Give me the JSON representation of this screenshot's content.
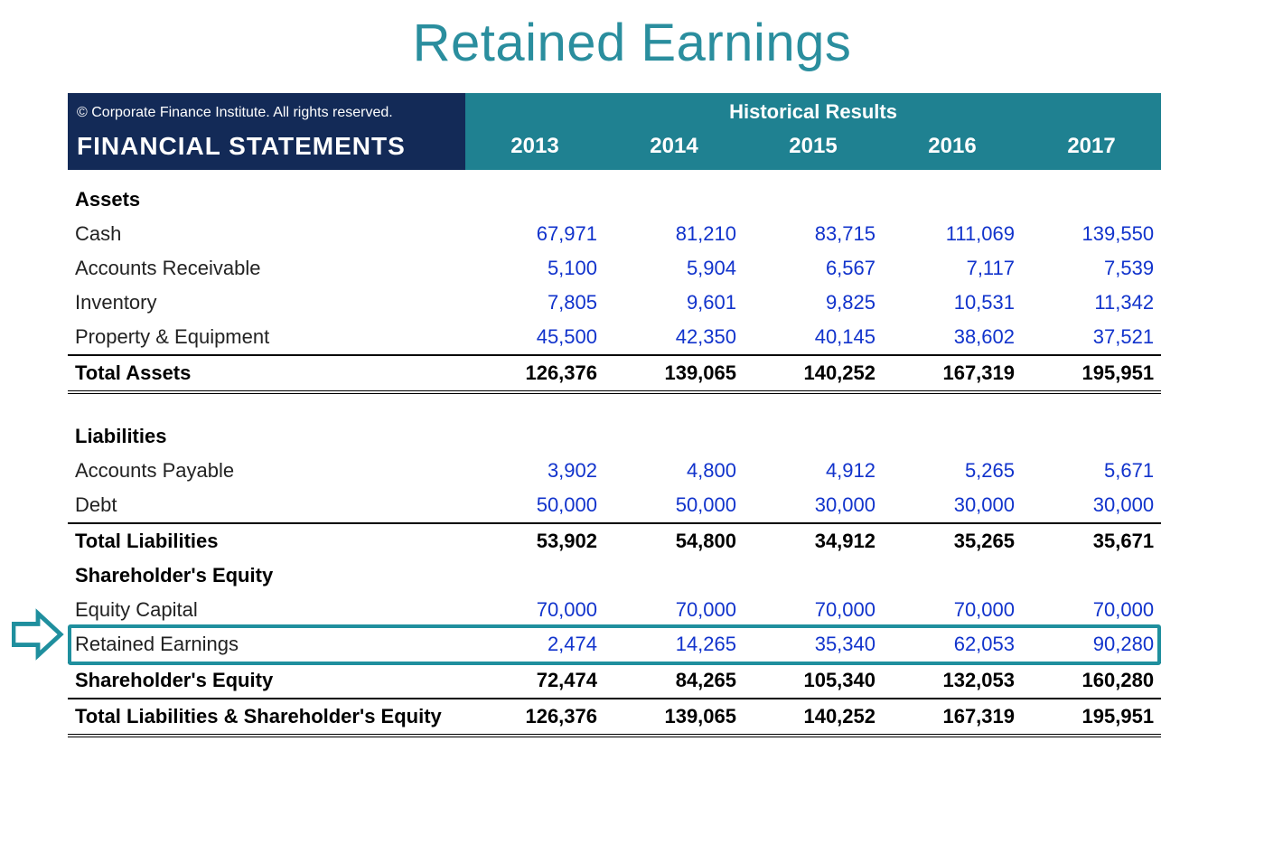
{
  "title": "Retained Earnings",
  "title_color": "#2a8e9e",
  "header": {
    "left_bg": "#132a57",
    "right_bg": "#1f8191",
    "copyright": "© Corporate Finance Institute. All rights reserved.",
    "section_label": "FINANCIAL STATEMENTS",
    "historical_label": "Historical Results",
    "years": [
      "2013",
      "2014",
      "2015",
      "2016",
      "2017"
    ]
  },
  "value_color": "#1133cc",
  "label_color": "#222222",
  "highlight_color": "#1f8f9e",
  "sections": [
    {
      "heading": "Assets",
      "rows": [
        {
          "label": "Cash",
          "values": [
            "67,971",
            "81,210",
            "83,715",
            "111,069",
            "139,550"
          ]
        },
        {
          "label": "Accounts Receivable",
          "values": [
            "5,100",
            "5,904",
            "6,567",
            "7,117",
            "7,539"
          ]
        },
        {
          "label": "Inventory",
          "values": [
            "7,805",
            "9,601",
            "9,825",
            "10,531",
            "11,342"
          ]
        },
        {
          "label": "Property & Equipment",
          "values": [
            "45,500",
            "42,350",
            "40,145",
            "38,602",
            "37,521"
          ]
        }
      ],
      "total": {
        "label": "Total Assets",
        "values": [
          "126,376",
          "139,065",
          "140,252",
          "167,319",
          "195,951"
        ],
        "double_rule": true
      }
    },
    {
      "heading": "Liabilities",
      "rows": [
        {
          "label": "Accounts Payable",
          "values": [
            "3,902",
            "4,800",
            "4,912",
            "5,265",
            "5,671"
          ]
        },
        {
          "label": "Debt",
          "values": [
            "50,000",
            "50,000",
            "30,000",
            "30,000",
            "30,000"
          ]
        }
      ],
      "total": {
        "label": "Total Liabilities",
        "values": [
          "53,902",
          "54,800",
          "34,912",
          "35,265",
          "35,671"
        ],
        "double_rule": false
      }
    },
    {
      "heading": "Shareholder's Equity",
      "rows": [
        {
          "label": "Equity Capital",
          "values": [
            "70,000",
            "70,000",
            "70,000",
            "70,000",
            "70,000"
          ]
        },
        {
          "label": "Retained Earnings",
          "values": [
            "2,474",
            "14,265",
            "35,340",
            "62,053",
            "90,280"
          ],
          "highlight": true
        }
      ],
      "total": {
        "label": "Shareholder's Equity",
        "values": [
          "72,474",
          "84,265",
          "105,340",
          "132,053",
          "160,280"
        ],
        "double_rule": false
      }
    }
  ],
  "grand_total": {
    "label": "Total Liabilities & Shareholder's Equity",
    "values": [
      "126,376",
      "139,065",
      "140,252",
      "167,319",
      "195,951"
    ]
  }
}
